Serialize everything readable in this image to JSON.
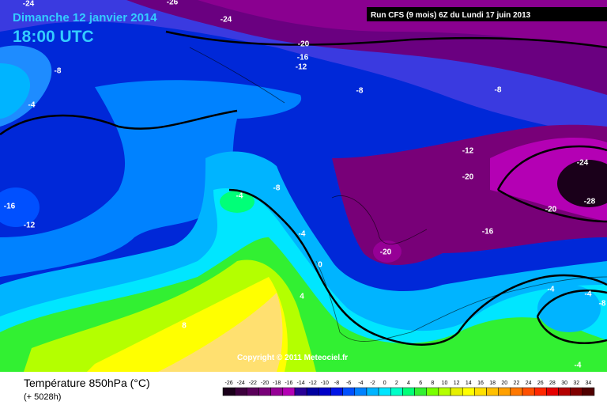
{
  "header": {
    "date": "Dimanche 12 janvier 2014",
    "time": "18:00 UTC",
    "run": "Run CFS (9 mois) 6Z du Lundi 17 juin 2013"
  },
  "copyright": "Copyright © 2011 Meteociel.fr",
  "footer": {
    "title": "Température 850hPa (°C)",
    "lead_time": "(+ 5028h)"
  },
  "contour_labels": [
    -24,
    -26,
    -24,
    -20,
    -16,
    -12,
    -8,
    -4,
    -8,
    -8,
    -12,
    -24,
    -20,
    -16,
    -12,
    -4,
    -8,
    -28,
    -20,
    -4,
    -16,
    -20,
    0,
    4,
    8,
    -4,
    -4,
    -8,
    -4
  ],
  "legend": {
    "items": [
      {
        "value": -26,
        "color": "#1a001a"
      },
      {
        "value": -24,
        "color": "#3c003c"
      },
      {
        "value": -22,
        "color": "#5a005a"
      },
      {
        "value": -20,
        "color": "#780078"
      },
      {
        "value": -18,
        "color": "#960096"
      },
      {
        "value": -16,
        "color": "#b400b4"
      },
      {
        "value": -14,
        "color": "#280096"
      },
      {
        "value": -12,
        "color": "#0000a0"
      },
      {
        "value": -10,
        "color": "#0000c8"
      },
      {
        "value": -8,
        "color": "#0014e6"
      },
      {
        "value": -6,
        "color": "#0050ff"
      },
      {
        "value": -4,
        "color": "#0082ff"
      },
      {
        "value": -2,
        "color": "#00b4ff"
      },
      {
        "value": 0,
        "color": "#00e6ff"
      },
      {
        "value": 2,
        "color": "#00ffc8"
      },
      {
        "value": 4,
        "color": "#00ff78"
      },
      {
        "value": 6,
        "color": "#32f032"
      },
      {
        "value": 8,
        "color": "#78ff00"
      },
      {
        "value": 10,
        "color": "#b4ff00"
      },
      {
        "value": 12,
        "color": "#e6f000"
      },
      {
        "value": 14,
        "color": "#ffff00"
      },
      {
        "value": 16,
        "color": "#ffe000"
      },
      {
        "value": 18,
        "color": "#ffc000"
      },
      {
        "value": 20,
        "color": "#ffa000"
      },
      {
        "value": 22,
        "color": "#ff7800"
      },
      {
        "value": 24,
        "color": "#ff5000"
      },
      {
        "value": 26,
        "color": "#ff2800"
      },
      {
        "value": 28,
        "color": "#e60000"
      },
      {
        "value": 30,
        "color": "#b40000"
      },
      {
        "value": 32,
        "color": "#800000"
      },
      {
        "value": 34,
        "color": "#500000"
      }
    ]
  }
}
